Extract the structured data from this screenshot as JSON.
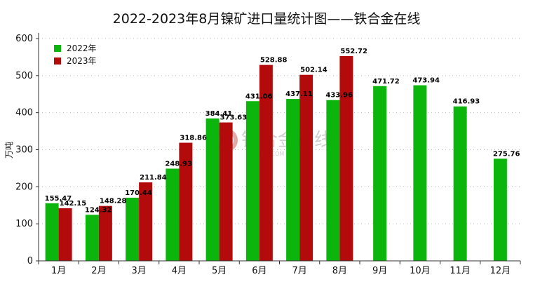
{
  "title": "2022-2023年8月镍矿进口量统计图——铁合金在线",
  "watermark": {
    "main": "铁合金在线",
    "sub": "CNFEOL.COM"
  },
  "colors": {
    "series_2022": "#0bb50b",
    "series_2023": "#b30b0b",
    "axis": "#333333",
    "grid": "#b8b8b8"
  },
  "chart_data": {
    "type": "bar",
    "title": "2022-2023年8月镍矿进口量统计图——铁合金在线",
    "ylabel": "万吨",
    "xlabel": "",
    "ylim": [
      0,
      600
    ],
    "yticks": [
      0,
      100,
      200,
      300,
      400,
      500,
      600
    ],
    "grid": "horizontal dashed",
    "legend_position": "top-left",
    "categories": [
      "1月",
      "2月",
      "3月",
      "4月",
      "5月",
      "6月",
      "7月",
      "8月",
      "9月",
      "10月",
      "11月",
      "12月"
    ],
    "series": [
      {
        "name": "2022年",
        "color": "#0bb50b",
        "values": [
          155.47,
          124.32,
          170.44,
          248.93,
          384.41,
          431.06,
          437.11,
          433.96,
          471.72,
          473.94,
          416.93,
          275.76
        ]
      },
      {
        "name": "2023年",
        "color": "#b30b0b",
        "values": [
          142.15,
          148.28,
          211.84,
          318.86,
          373.63,
          528.88,
          502.14,
          552.72,
          null,
          null,
          null,
          null
        ]
      }
    ]
  }
}
